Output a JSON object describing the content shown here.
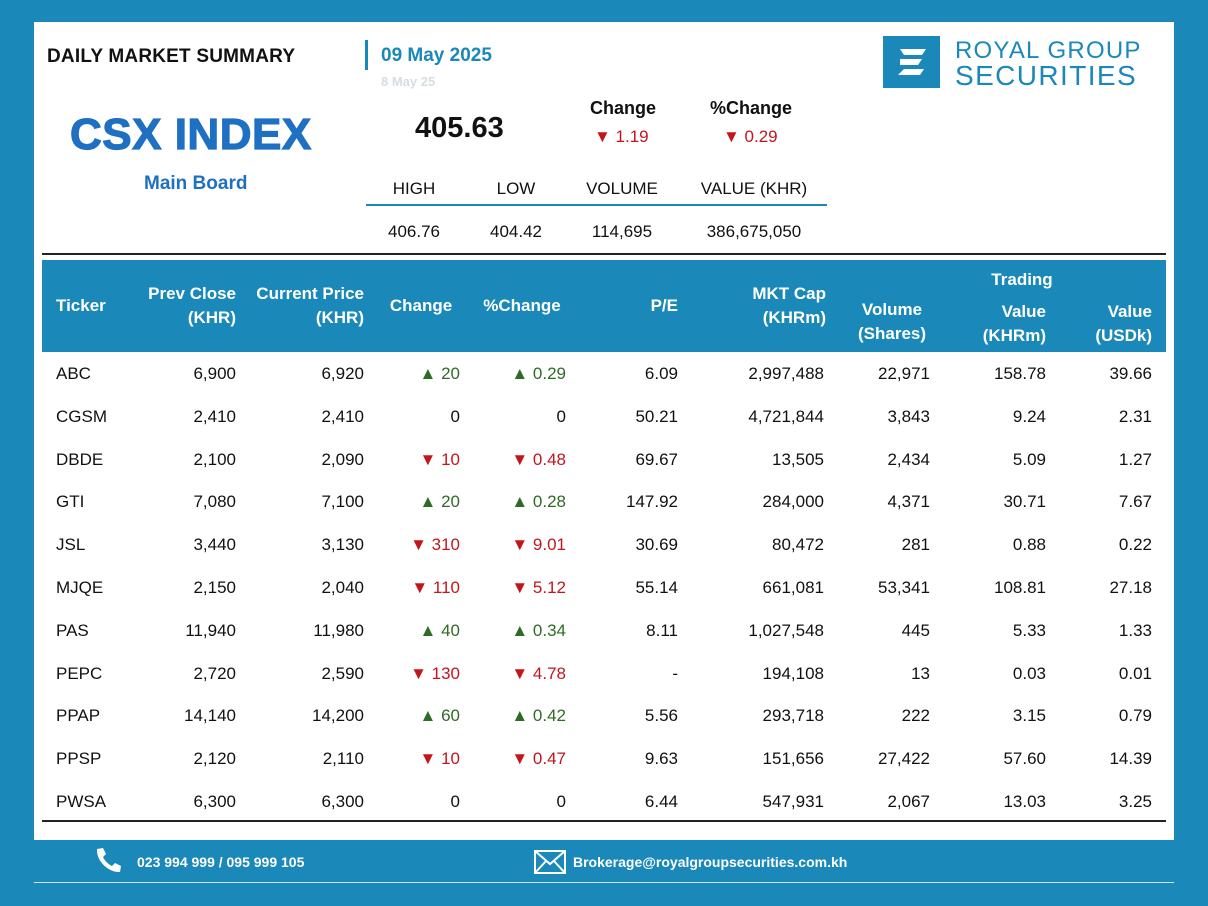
{
  "header": {
    "title": "DAILY MARKET SUMMARY",
    "date": "09 May 2025",
    "ghost_date": "8 May 25"
  },
  "logo": {
    "line1": "ROYAL GROUP",
    "line2": "SECURITIES"
  },
  "index": {
    "name": "CSX INDEX",
    "board": "Main Board",
    "value": "405.63",
    "change_label": "Change",
    "change_value": "▼ 1.19",
    "pct_change_label": "%Change",
    "pct_change_value": "▼ 0.29",
    "stats": {
      "headers": [
        "HIGH",
        "LOW",
        "VOLUME",
        "VALUE (KHR)"
      ],
      "values": [
        "406.76",
        "404.42",
        "114,695",
        "386,675,050"
      ]
    }
  },
  "table": {
    "headers": {
      "ticker": "Ticker",
      "prev_close_1": "Prev Close",
      "prev_close_2": "(KHR)",
      "current_1": "Current Price",
      "current_2": "(KHR)",
      "change": "Change",
      "pct_change": "%Change",
      "pe": "P/E",
      "mktcap_1": "MKT Cap",
      "mktcap_2": "(KHRm)",
      "volume_1": "Volume",
      "volume_2": "(Shares)",
      "trading": "Trading",
      "value_khr_1": "Value",
      "value_khr_2": "(KHRm)",
      "value_usd_1": "Value",
      "value_usd_2": "(USDk)"
    },
    "rows": [
      {
        "ticker": "ABC",
        "prev": "6,900",
        "cur": "6,920",
        "chg": "▲ 20",
        "pct": "▲ 0.29",
        "dir": "up",
        "pe": "6.09",
        "mcap": "2,997,488",
        "vol": "22,971",
        "vkhr": "158.78",
        "vusd": "39.66"
      },
      {
        "ticker": "CGSM",
        "prev": "2,410",
        "cur": "2,410",
        "chg": "0",
        "pct": "0",
        "dir": "flat",
        "pe": "50.21",
        "mcap": "4,721,844",
        "vol": "3,843",
        "vkhr": "9.24",
        "vusd": "2.31"
      },
      {
        "ticker": "DBDE",
        "prev": "2,100",
        "cur": "2,090",
        "chg": "▼ 10",
        "pct": "▼ 0.48",
        "dir": "down",
        "pe": "69.67",
        "mcap": "13,505",
        "vol": "2,434",
        "vkhr": "5.09",
        "vusd": "1.27"
      },
      {
        "ticker": "GTI",
        "prev": "7,080",
        "cur": "7,100",
        "chg": "▲ 20",
        "pct": "▲ 0.28",
        "dir": "up",
        "pe": "147.92",
        "mcap": "284,000",
        "vol": "4,371",
        "vkhr": "30.71",
        "vusd": "7.67"
      },
      {
        "ticker": "JSL",
        "prev": "3,440",
        "cur": "3,130",
        "chg": "▼ 310",
        "pct": "▼ 9.01",
        "dir": "down",
        "pe": "30.69",
        "mcap": "80,472",
        "vol": "281",
        "vkhr": "0.88",
        "vusd": "0.22"
      },
      {
        "ticker": "MJQE",
        "prev": "2,150",
        "cur": "2,040",
        "chg": "▼ 110",
        "pct": "▼ 5.12",
        "dir": "down",
        "pe": "55.14",
        "mcap": "661,081",
        "vol": "53,341",
        "vkhr": "108.81",
        "vusd": "27.18"
      },
      {
        "ticker": "PAS",
        "prev": "11,940",
        "cur": "11,980",
        "chg": "▲ 40",
        "pct": "▲ 0.34",
        "dir": "up",
        "pe": "8.11",
        "mcap": "1,027,548",
        "vol": "445",
        "vkhr": "5.33",
        "vusd": "1.33"
      },
      {
        "ticker": "PEPC",
        "prev": "2,720",
        "cur": "2,590",
        "chg": "▼ 130",
        "pct": "▼ 4.78",
        "dir": "down",
        "pe": "-",
        "mcap": "194,108",
        "vol": "13",
        "vkhr": "0.03",
        "vusd": "0.01"
      },
      {
        "ticker": "PPAP",
        "prev": "14,140",
        "cur": "14,200",
        "chg": "▲ 60",
        "pct": "▲ 0.42",
        "dir": "up",
        "pe": "5.56",
        "mcap": "293,718",
        "vol": "222",
        "vkhr": "3.15",
        "vusd": "0.79"
      },
      {
        "ticker": "PPSP",
        "prev": "2,120",
        "cur": "2,110",
        "chg": "▼ 10",
        "pct": "▼ 0.47",
        "dir": "down",
        "pe": "9.63",
        "mcap": "151,656",
        "vol": "27,422",
        "vkhr": "57.60",
        "vusd": "14.39"
      },
      {
        "ticker": "PWSA",
        "prev": "6,300",
        "cur": "6,300",
        "chg": "0",
        "pct": "0",
        "dir": "flat",
        "pe": "6.44",
        "mcap": "547,931",
        "vol": "2,067",
        "vkhr": "13.03",
        "vusd": "3.25"
      }
    ]
  },
  "footer": {
    "phone": "023 994 999 / 095 999 105",
    "email": "Brokerage@royalgroupsecurities.com.kh"
  },
  "colors": {
    "brand": "#1a88b8",
    "up": "#2e6b24",
    "down": "#c3161c",
    "title": "#1f6fc2"
  }
}
